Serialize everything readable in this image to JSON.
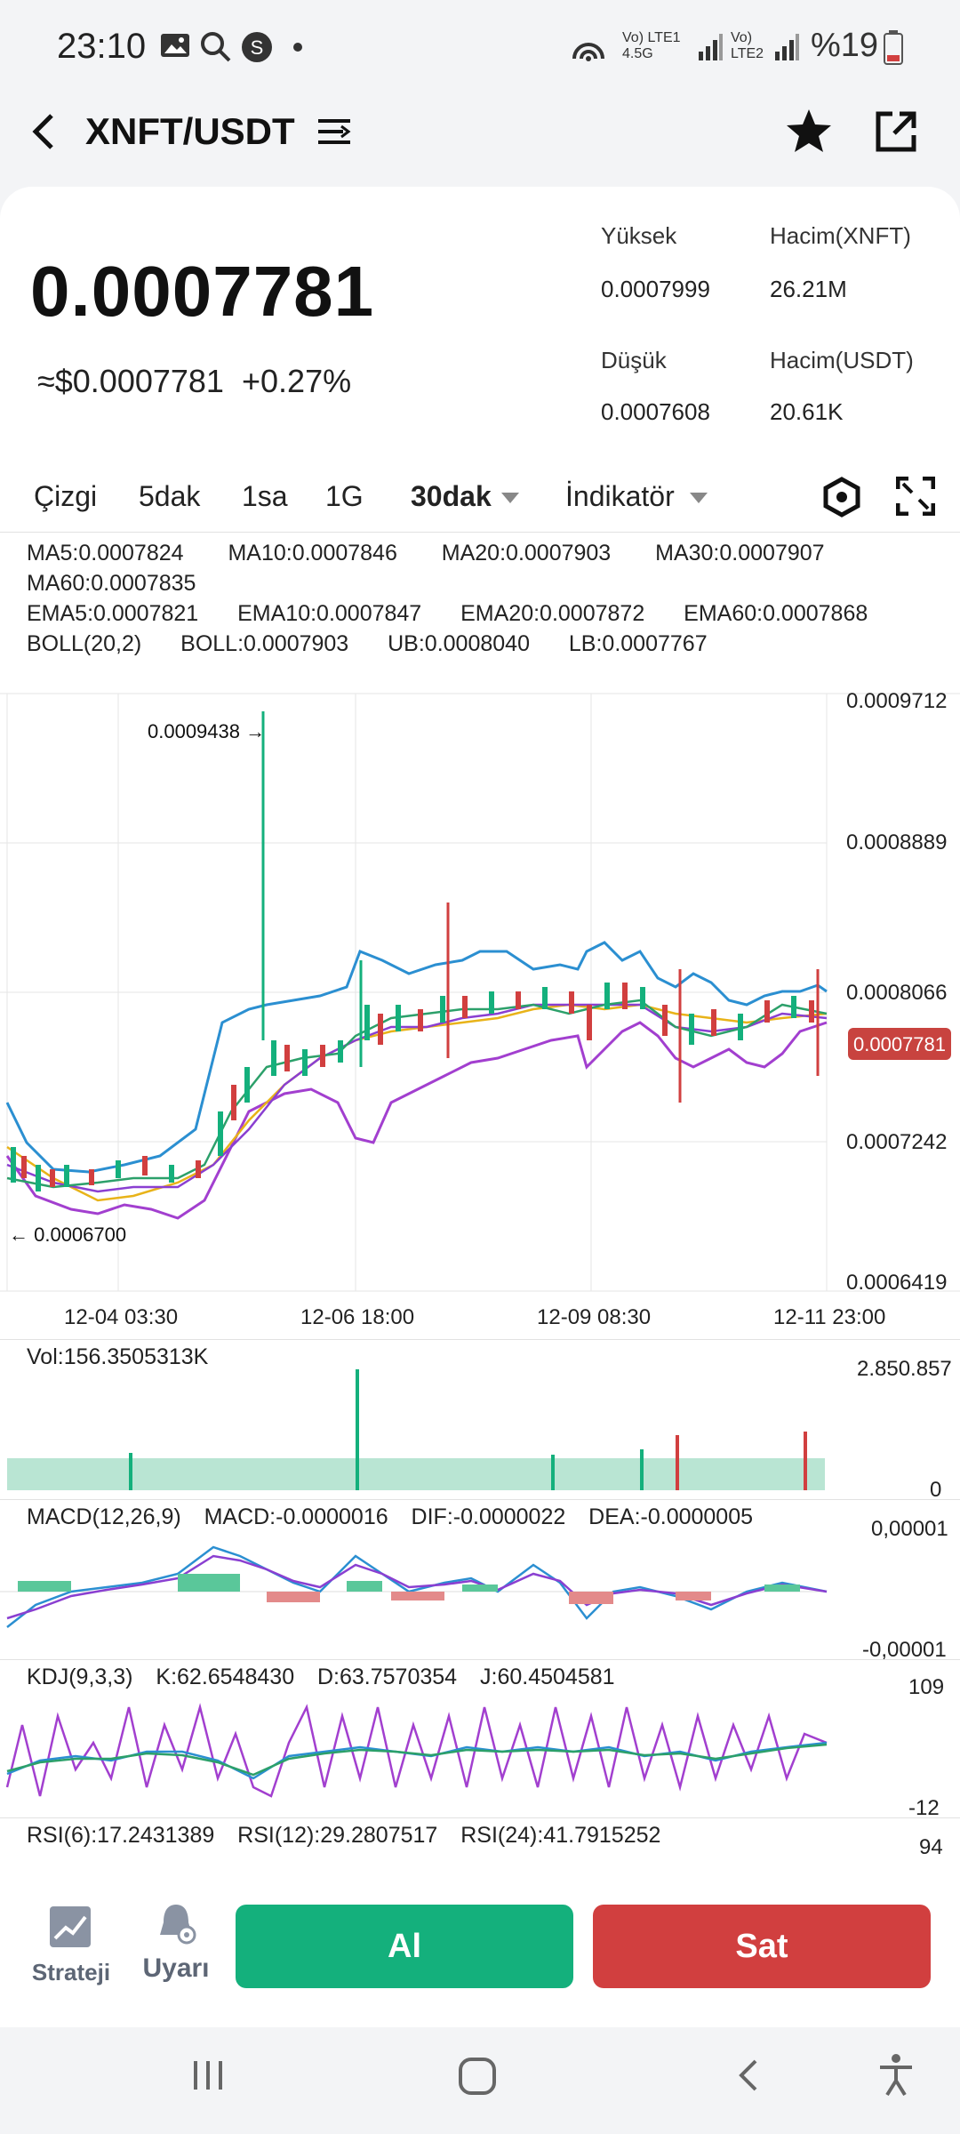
{
  "status": {
    "time": "23:10",
    "signal_text": "Vo) LTE1 4.5G",
    "signal_text2": "Vo) LTE2",
    "battery": "%19"
  },
  "header": {
    "pair": "XNFT/USDT"
  },
  "price": {
    "last": "0.0007781",
    "usd": "≈$0.0007781",
    "change": "+0.27%"
  },
  "stats": {
    "high_label": "Yüksek",
    "high_value": "0.0007999",
    "vol_xnft_label": "Hacim(XNFT)",
    "vol_xnft_value": "26.21M",
    "low_label": "Düşük",
    "low_value": "0.0007608",
    "vol_usdt_label": "Hacim(USDT)",
    "vol_usdt_value": "20.61K"
  },
  "tabs": {
    "line": "Çizgi",
    "m5": "5dak",
    "h1": "1sa",
    "d1": "1G",
    "m30": "30dak",
    "indicator": "İndikatör"
  },
  "indicators": {
    "ma5": "MA5:0.0007824",
    "ma10": "MA10:0.0007846",
    "ma20": "MA20:0.0007903",
    "ma30": "MA30:0.0007907",
    "ma60": "MA60:0.0007835",
    "ema5": "EMA5:0.0007821",
    "ema10": "EMA10:0.0007847",
    "ema20": "EMA20:0.0007872",
    "ema60": "EMA60:0.0007868",
    "boll_label": "BOLL(20,2)",
    "boll": "BOLL:0.0007903",
    "ub": "UB:0.0008040",
    "lb": "LB:0.0007767"
  },
  "chart": {
    "y_ticks": [
      "0.0009712",
      "0.0008889",
      "0.0008066",
      "0.0007242",
      "0.0006419"
    ],
    "x_ticks": [
      "12-04 03:30",
      "12-06 18:00",
      "12-09 08:30",
      "12-11 23:00"
    ],
    "high_annotation": "0.0009438 →",
    "low_annotation": "← 0.0006700",
    "current_price_tag": "0.0007781"
  },
  "volume": {
    "label": "Vol:156.3505313K",
    "y_top": "2.850.857",
    "y_bottom": "0"
  },
  "macd": {
    "label": "MACD(12,26,9)",
    "macd": "MACD:-0.0000016",
    "dif": "DIF:-0.0000022",
    "dea": "DEA:-0.0000005",
    "y_top": "0,00001",
    "y_bottom": "-0,00001"
  },
  "kdj": {
    "label": "KDJ(9,3,3)",
    "k": "K:62.6548430",
    "d": "D:63.7570354",
    "j": "J:60.4504581",
    "y_top": "109",
    "y_bottom": "-12"
  },
  "rsi": {
    "r6": "RSI(6):17.2431389",
    "r12": "RSI(12):29.2807517",
    "r24": "RSI(24):41.7915252",
    "y_top": "94"
  },
  "actions": {
    "strategy": "Strateji",
    "alerts": "Uyarı",
    "buy": "Al",
    "sell": "Sat"
  },
  "colors": {
    "buy": "#14b07c",
    "sell": "#d13f3f",
    "bg": "#f3f4f6"
  }
}
